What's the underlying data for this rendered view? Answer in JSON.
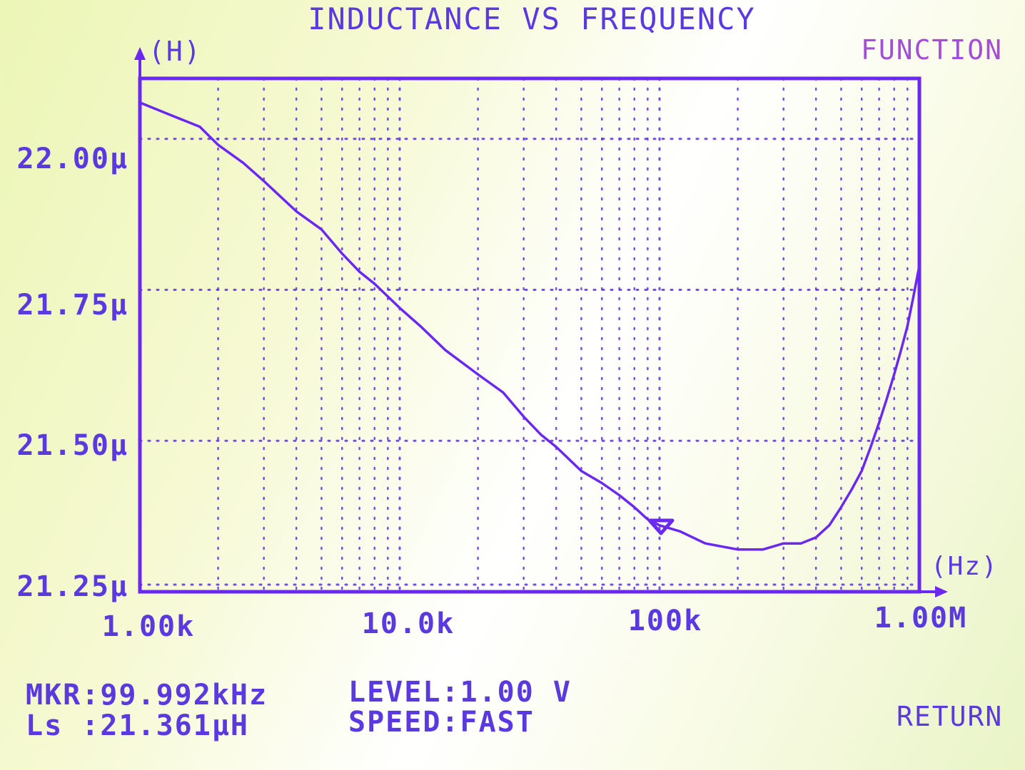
{
  "colors": {
    "trace": "#6a28f0",
    "label": "#5a3ae0",
    "function_label": "#a24fd6",
    "grid": "#5a30e8"
  },
  "header": {
    "title": "INDUCTANCE VS FREQUENCY",
    "y_unit": "(H)",
    "x_unit": "(Hz)",
    "function_button": "FUNCTION"
  },
  "footer": {
    "marker_freq": "MKR:99.992kHz",
    "marker_value": "Ls :21.361μH",
    "level": "LEVEL:1.00 V",
    "speed": "SPEED:FAST",
    "return_button": "RETURN"
  },
  "chart_data": {
    "type": "line",
    "title": "INDUCTANCE VS FREQUENCY",
    "xlabel": "(Hz)",
    "ylabel": "(H)",
    "xscale": "log",
    "xlim": [
      1000,
      1000000
    ],
    "ylim": [
      21.25,
      22.1
    ],
    "x_tick_labels": [
      {
        "value": 1000,
        "label": "1.00k"
      },
      {
        "value": 10000,
        "label": "10.0k"
      },
      {
        "value": 100000,
        "label": "100k"
      },
      {
        "value": 1000000,
        "label": "1.00M"
      }
    ],
    "y_tick_labels": [
      {
        "value": 22.0,
        "label": "22.00μ"
      },
      {
        "value": 21.75,
        "label": "21.75μ"
      },
      {
        "value": 21.5,
        "label": "21.50μ"
      },
      {
        "value": 21.25,
        "label": "21.25μ"
      }
    ],
    "grid": true,
    "marker": {
      "x": 99992,
      "y": 21.361
    },
    "series": [
      {
        "x": [
          1000,
          1300,
          1700,
          2000,
          2500,
          3000,
          4000,
          5000,
          6000,
          7000,
          8000,
          10000,
          12000,
          15000,
          20000,
          25000,
          30000,
          35000,
          40000,
          50000,
          60000,
          70000,
          80000,
          90000,
          100000,
          120000,
          150000,
          200000,
          250000,
          300000,
          350000,
          400000,
          450000,
          500000,
          550000,
          600000,
          650000,
          700000,
          750000,
          800000,
          850000,
          900000,
          950000,
          1000000
        ],
        "values": [
          22.06,
          22.04,
          22.02,
          21.99,
          21.96,
          21.93,
          21.88,
          21.85,
          21.81,
          21.78,
          21.76,
          21.72,
          21.69,
          21.65,
          21.61,
          21.58,
          21.54,
          21.51,
          21.49,
          21.45,
          21.43,
          21.41,
          21.39,
          21.37,
          21.36,
          21.35,
          21.33,
          21.32,
          21.32,
          21.33,
          21.33,
          21.34,
          21.36,
          21.39,
          21.42,
          21.45,
          21.49,
          21.53,
          21.57,
          21.61,
          21.65,
          21.69,
          21.74,
          21.79
        ]
      }
    ]
  }
}
